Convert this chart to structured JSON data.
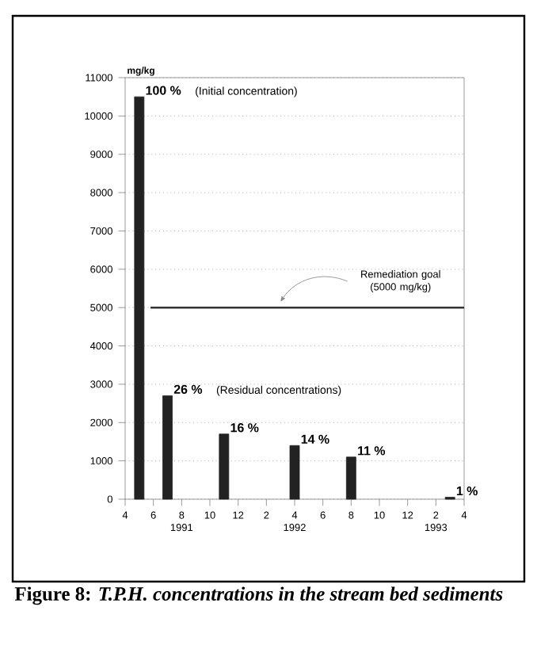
{
  "chart_data": {
    "type": "bar",
    "title": "**Figure 8:** *T.P.H. concentrations in the stream bed sediments*",
    "ylabel": "mg/kg",
    "x": [
      "1991-05",
      "1991-07",
      "1991-11",
      "1992-04",
      "1992-08",
      "1993-03"
    ],
    "values": [
      10500,
      2700,
      1700,
      1400,
      1100,
      50
    ],
    "color": "#222222",
    "xlim": [
      "1991-04",
      "1993-04"
    ],
    "xticks": [
      {
        "value": "1991-04",
        "label": "4"
      },
      {
        "value": "1991-06",
        "label": "6"
      },
      {
        "value": "1991-08",
        "label": "8"
      },
      {
        "value": "1991-10",
        "label": "10"
      },
      {
        "value": "1991-12",
        "label": "12"
      },
      {
        "value": "1992-02",
        "label": "2"
      },
      {
        "value": "1992-04",
        "label": "4"
      },
      {
        "value": "1992-06",
        "label": "6"
      },
      {
        "value": "1992-08",
        "label": "8"
      },
      {
        "value": "1992-10",
        "label": "10"
      },
      {
        "value": "1992-12",
        "label": "12"
      },
      {
        "value": "1993-02",
        "label": "2"
      },
      {
        "value": "1993-04",
        "label": "4"
      }
    ],
    "ylim": [
      0,
      11000
    ],
    "yticks": [
      0,
      1000,
      2000,
      3000,
      4000,
      5000,
      6000,
      7000,
      8000,
      9000,
      10000,
      11000
    ],
    "grid": "y",
    "ref_lines": [
      {
        "axis": "y",
        "value": 5000,
        "label": "Remediation goal (5000 mg/kg)",
        "color": "#333333",
        "line_style": "solid"
      }
    ],
    "annotations": [
      {
        "text": "100 %",
        "x": "1991-05",
        "y": 10500
      },
      "(Initial concentration)",
      {
        "text": "26 %",
        "x": "1991-07",
        "y": 2700
      },
      "(Residual concentrations)",
      {
        "text": "16 %",
        "x": "1991-11",
        "y": 1700
      },
      {
        "text": "14 %",
        "x": "1992-04",
        "y": 1400
      },
      {
        "text": "11 %",
        "x": "1992-08",
        "y": 1100
      },
      {
        "text": "1 %",
        "x": "1993-03",
        "y": 50
      },
      "1991",
      "1992",
      "1993"
    ]
  }
}
